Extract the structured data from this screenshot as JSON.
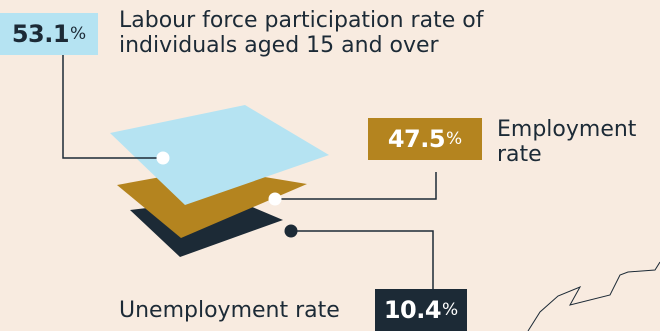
{
  "labour_force": {
    "value": "53.1",
    "unit": "%",
    "label_line1": "Labour force participation rate of",
    "label_line2": "individuals aged 15 and over"
  },
  "employment": {
    "value": "47.5",
    "unit": "%",
    "label_line1": "Employment",
    "label_line2": "rate"
  },
  "unemployment": {
    "value": "10.4",
    "unit": "%",
    "label": "Unemployment rate"
  },
  "colors": {
    "background": "#f8ebe0",
    "light_blue": "#b5e3f2",
    "gold": "#b4841f",
    "navy": "#1c2a36"
  }
}
